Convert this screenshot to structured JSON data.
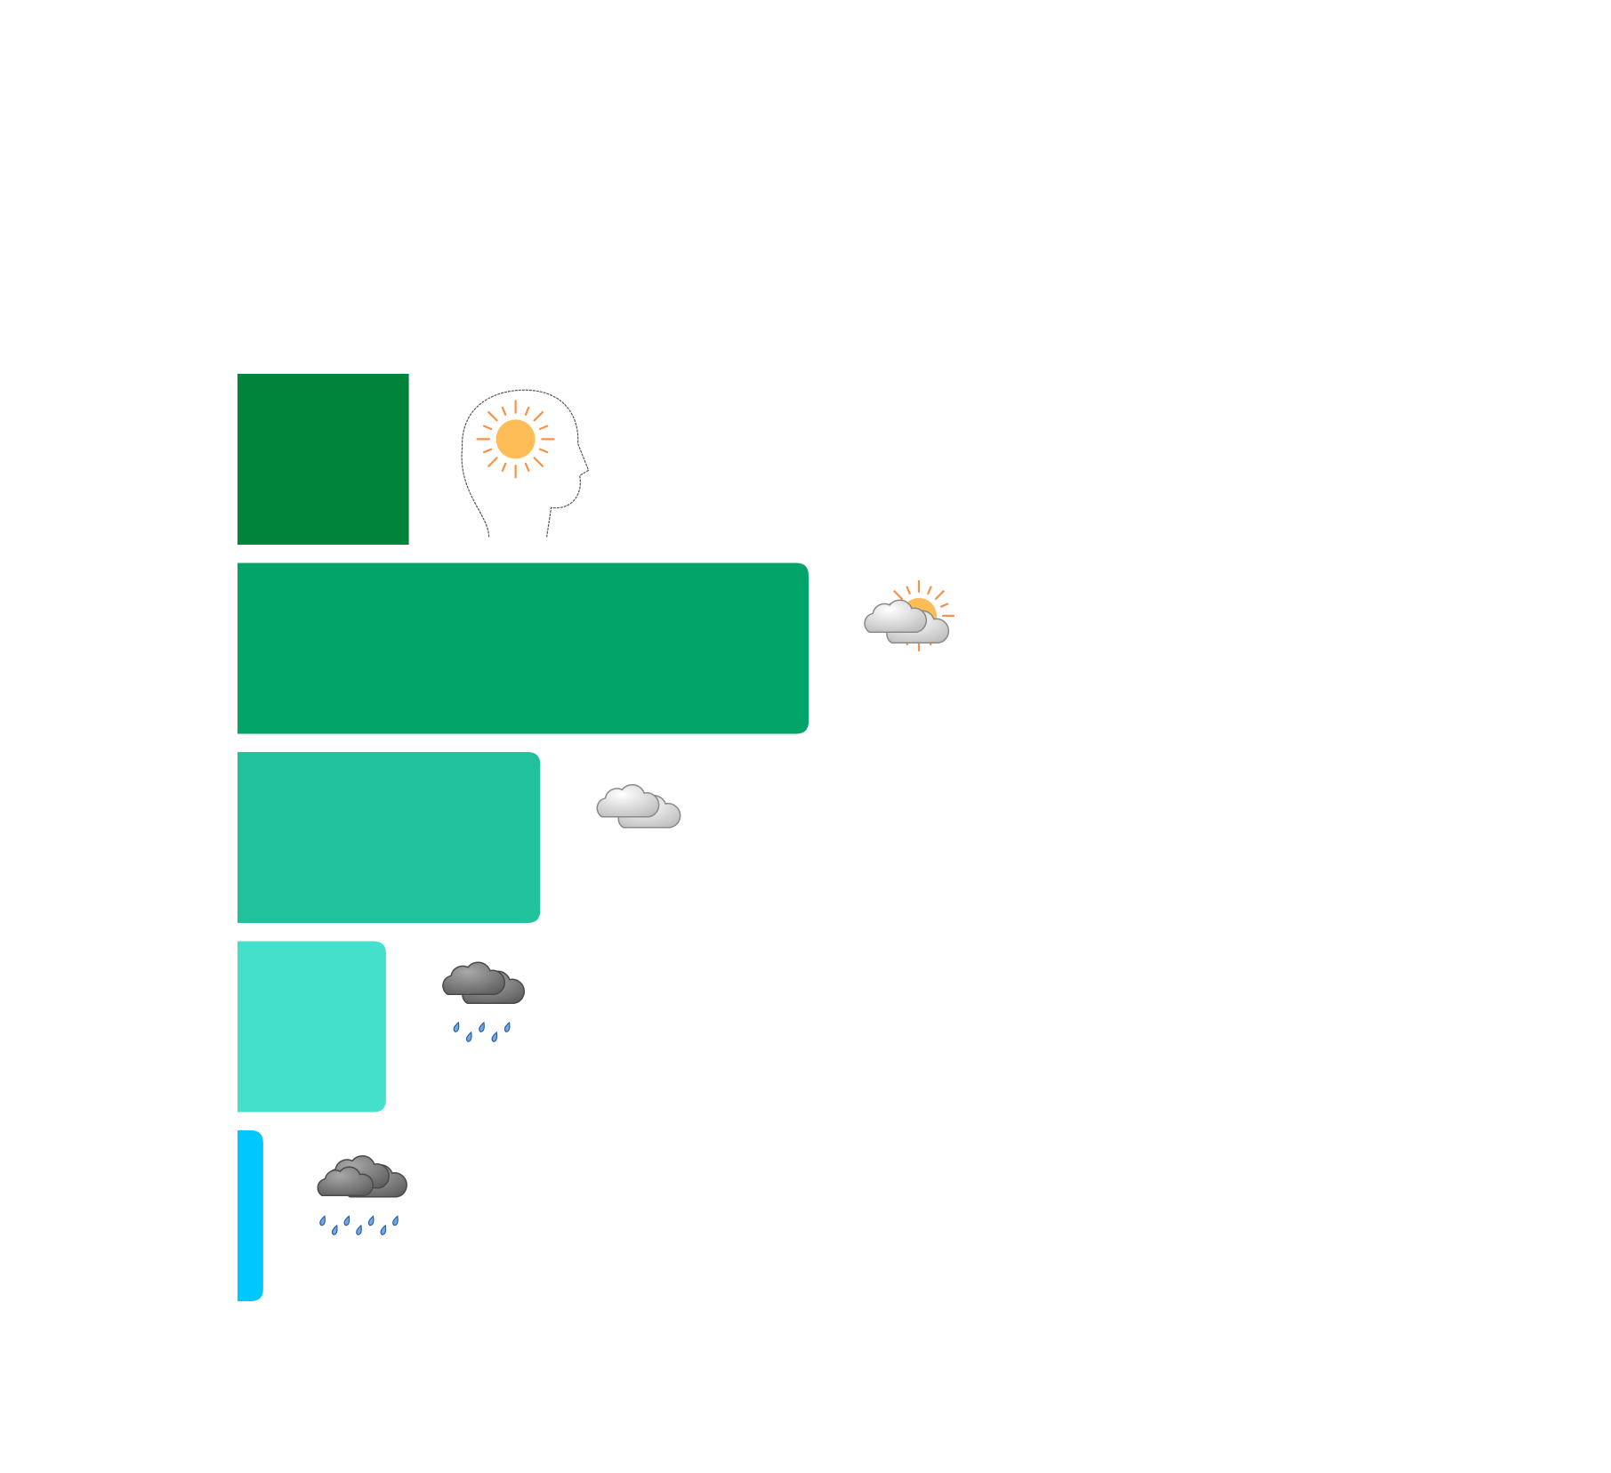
{
  "chart_data": {
    "type": "bar",
    "orientation": "horizontal",
    "values": [
      30,
      100,
      53,
      26,
      4.5
    ],
    "colors": [
      "#00833a",
      "#02a46a",
      "#1fc29c",
      "#45e0cc",
      "#00c8ff"
    ],
    "xlim": [
      0,
      100
    ]
  }
}
